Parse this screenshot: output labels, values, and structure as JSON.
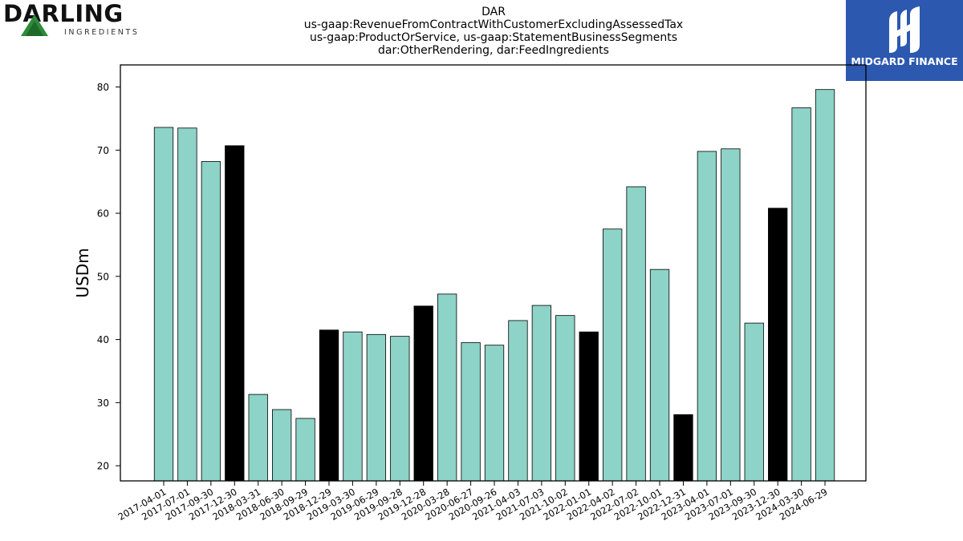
{
  "logos": {
    "left": {
      "wordmark": "DARLING",
      "subtitle": "INGREDIENTS",
      "icon": "green-triangle-logo"
    },
    "right": {
      "brand": "MIDGARD FINANCE",
      "icon": "midgard-m-logo",
      "background": "#2c58b0"
    }
  },
  "chart_data": {
    "type": "bar",
    "title_lines": [
      "DAR",
      "us-gaap:RevenueFromContractWithCustomerExcludingAssessedTax",
      "us-gaap:ProductOrService, us-gaap:StatementBusinessSegments",
      "dar:OtherRendering, dar:FeedIngredients"
    ],
    "xlabel": "",
    "ylabel": "USDm",
    "ylim": [
      17.6,
      83.5
    ],
    "yticks": [
      20,
      30,
      40,
      50,
      60,
      70,
      80
    ],
    "grid": false,
    "colors": {
      "quarter": "#8dd3c7",
      "annual": "#000000",
      "edge": "#000000"
    },
    "categories": [
      "2017-04-01",
      "2017-07-01",
      "2017-09-30",
      "2017-12-30",
      "2018-03-31",
      "2018-06-30",
      "2018-09-29",
      "2018-12-29",
      "2019-03-30",
      "2019-06-29",
      "2019-09-28",
      "2019-12-28",
      "2020-03-28",
      "2020-06-27",
      "2020-09-26",
      "2021-04-03",
      "2021-07-03",
      "2021-10-02",
      "2022-01-01",
      "2022-04-02",
      "2022-07-02",
      "2022-10-01",
      "2022-12-31",
      "2023-04-01",
      "2023-07-01",
      "2023-09-30",
      "2023-12-30",
      "2024-03-30",
      "2024-06-29"
    ],
    "values": [
      73.6,
      73.5,
      68.2,
      70.7,
      31.3,
      28.9,
      27.5,
      41.5,
      41.2,
      40.8,
      40.5,
      45.3,
      47.2,
      39.5,
      39.1,
      43.0,
      45.4,
      43.8,
      41.2,
      57.5,
      64.2,
      51.1,
      28.1,
      69.8,
      70.2,
      42.6,
      60.8,
      76.7,
      79.6
    ],
    "highlight": [
      false,
      false,
      false,
      true,
      false,
      false,
      false,
      true,
      false,
      false,
      false,
      true,
      false,
      false,
      false,
      false,
      false,
      false,
      true,
      false,
      false,
      false,
      true,
      false,
      false,
      false,
      true,
      false,
      false
    ]
  }
}
